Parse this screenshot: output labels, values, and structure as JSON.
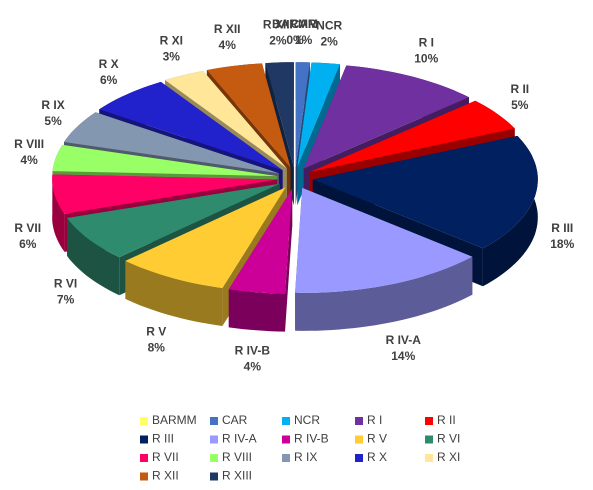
{
  "chart_data": {
    "type": "pie",
    "categories": [
      "BARMM",
      "CAR",
      "NCR",
      "R I",
      "R II",
      "R III",
      "R IV-A",
      "R IV-B",
      "R V",
      "R VI",
      "R VII",
      "R VIII",
      "R IX",
      "R X",
      "R XI",
      "R XII",
      "R XIII"
    ],
    "values": [
      0,
      1,
      2,
      10,
      5,
      18,
      14,
      4,
      8,
      7,
      6,
      4,
      5,
      6,
      3,
      4,
      2
    ],
    "value_labels": [
      "0%",
      "1%",
      "2%",
      "10%",
      "5%",
      "18%",
      "14%",
      "4%",
      "8%",
      "7%",
      "6%",
      "4%",
      "5%",
      "6%",
      "3%",
      "4%",
      "2%"
    ],
    "colors": [
      "#ffff66",
      "#4472c4",
      "#00b0f0",
      "#7030a0",
      "#ff0000",
      "#002060",
      "#9999ff",
      "#cc0099",
      "#ffcc33",
      "#2e8b6e",
      "#ff0066",
      "#99ff66",
      "#8497b0",
      "#2222cc",
      "#ffe699",
      "#c55a11",
      "#203864"
    ],
    "legend": "bottom"
  }
}
